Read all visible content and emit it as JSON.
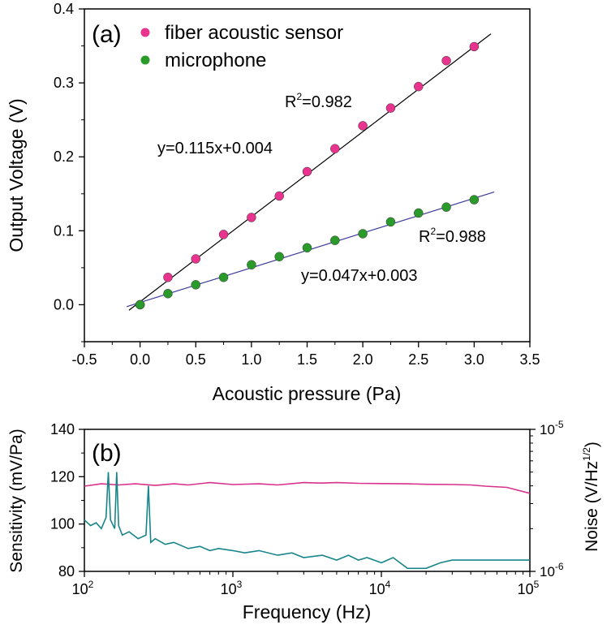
{
  "chart_data": [
    {
      "type": "scatter",
      "panel_label": "(a)",
      "xlabel": "Acoustic pressure (Pa)",
      "ylabel": "Output Voltage (V)",
      "xlim": [
        -0.5,
        3.5
      ],
      "ylim": [
        -0.05,
        0.4
      ],
      "xticks": [
        "-0.5",
        "0.0",
        "0.5",
        "1.0",
        "1.5",
        "2.0",
        "2.5",
        "3.0",
        "3.5"
      ],
      "yticks": [
        "0.0",
        "0.1",
        "0.2",
        "0.3",
        "0.4"
      ],
      "grid": false,
      "legend_position": "top-left",
      "series": [
        {
          "name": "fiber acoustic sensor",
          "color": "#e8338f",
          "x": [
            0,
            0.25,
            0.5,
            0.75,
            1.0,
            1.25,
            1.5,
            1.75,
            2.0,
            2.25,
            2.5,
            2.75,
            3.0
          ],
          "values": [
            0.0,
            0.037,
            0.062,
            0.095,
            0.118,
            0.147,
            0.18,
            0.211,
            0.242,
            0.266,
            0.295,
            0.33,
            0.349
          ],
          "fit": {
            "slope": 0.115,
            "intercept": 0.004,
            "x_range": [
              -0.1,
              3.15
            ],
            "color": "#000000"
          },
          "equation": "y=0.115x+0.004",
          "r2_prefix": "R",
          "r2_sup": "2",
          "r2_value": "=0.982"
        },
        {
          "name": "microphone",
          "color": "#2a9a2a",
          "x": [
            0,
            0.25,
            0.5,
            0.75,
            1.0,
            1.25,
            1.5,
            1.75,
            2.0,
            2.25,
            2.5,
            2.75,
            3.0
          ],
          "values": [
            0.0,
            0.015,
            0.027,
            0.037,
            0.054,
            0.065,
            0.077,
            0.087,
            0.096,
            0.112,
            0.124,
            0.132,
            0.142
          ],
          "fit": {
            "slope": 0.047,
            "intercept": 0.003,
            "x_range": [
              -0.12,
              3.18
            ],
            "color": "#3b3b9b"
          },
          "equation": "y=0.047x+0.003",
          "r2_prefix": "R",
          "r2_sup": "2",
          "r2_value": "=0.988"
        }
      ]
    },
    {
      "type": "line",
      "panel_label": "(b)",
      "xlabel": "Frequency (Hz)",
      "ylabel_left": "Sensitivity (mV/Pa)",
      "ylabel_right_main": "Noise (V/Hz",
      "ylabel_right_sup": "1/2",
      "ylabel_right_close": ")",
      "x_scale": "log",
      "xlim": [
        100,
        100000
      ],
      "ylim_left": [
        80,
        140
      ],
      "ylim_right": [
        1e-06,
        1e-05
      ],
      "y_right_scale": "log",
      "xticks": [
        {
          "base": "10",
          "exp": "2"
        },
        {
          "base": "10",
          "exp": "3"
        },
        {
          "base": "10",
          "exp": "4"
        },
        {
          "base": "10",
          "exp": "5"
        }
      ],
      "yticks_left": [
        "80",
        "100",
        "120",
        "140"
      ],
      "yticks_right": [
        {
          "base": "10",
          "exp": "-6"
        },
        {
          "base": "10",
          "exp": "-5"
        }
      ],
      "grid": false,
      "series": [
        {
          "axis": "left",
          "color": "#d8308c",
          "x": [
            100,
            130,
            170,
            220,
            300,
            400,
            500,
            700,
            1000,
            1500,
            2000,
            3000,
            4000,
            5000,
            7000,
            10000,
            15000,
            20000,
            30000,
            40000,
            50000,
            70000,
            100000
          ],
          "values": [
            116,
            117,
            116.5,
            117,
            116.3,
            117,
            116.5,
            117.5,
            116.7,
            117,
            116.5,
            117.5,
            117.3,
            117.5,
            117.2,
            117.1,
            117,
            116.8,
            116.7,
            116.5,
            116,
            115.5,
            113
          ]
        },
        {
          "axis": "right",
          "color": "#17858a",
          "x": [
            100,
            110,
            120,
            130,
            140,
            145,
            150,
            160,
            165,
            170,
            180,
            200,
            230,
            260,
            270,
            280,
            300,
            350,
            400,
            500,
            600,
            700,
            800,
            1000,
            1200,
            1500,
            2000,
            2500,
            3000,
            4000,
            5000,
            6000,
            7000,
            8000,
            10000,
            12000,
            15000,
            20000,
            25000,
            30000,
            50000,
            100000
          ],
          "values": [
            2.3e-06,
            2.1e-06,
            2.2e-06,
            2e-06,
            2.4e-06,
            5e-06,
            2.3e-06,
            2e-06,
            5e-06,
            2.1e-06,
            1.8e-06,
            1.9e-06,
            1.7e-06,
            1.8e-06,
            4e-06,
            1.6e-06,
            1.7e-06,
            1.55e-06,
            1.6e-06,
            1.45e-06,
            1.5e-06,
            1.4e-06,
            1.45e-06,
            1.4e-06,
            1.35e-06,
            1.4e-06,
            1.3e-06,
            1.35e-06,
            1.25e-06,
            1.3e-06,
            1.2e-06,
            1.3e-06,
            1.2e-06,
            1.25e-06,
            1.15e-06,
            1.25e-06,
            1.05e-06,
            1.05e-06,
            1.15e-06,
            1.2e-06,
            1.2e-06,
            1.2e-06
          ]
        }
      ]
    }
  ]
}
